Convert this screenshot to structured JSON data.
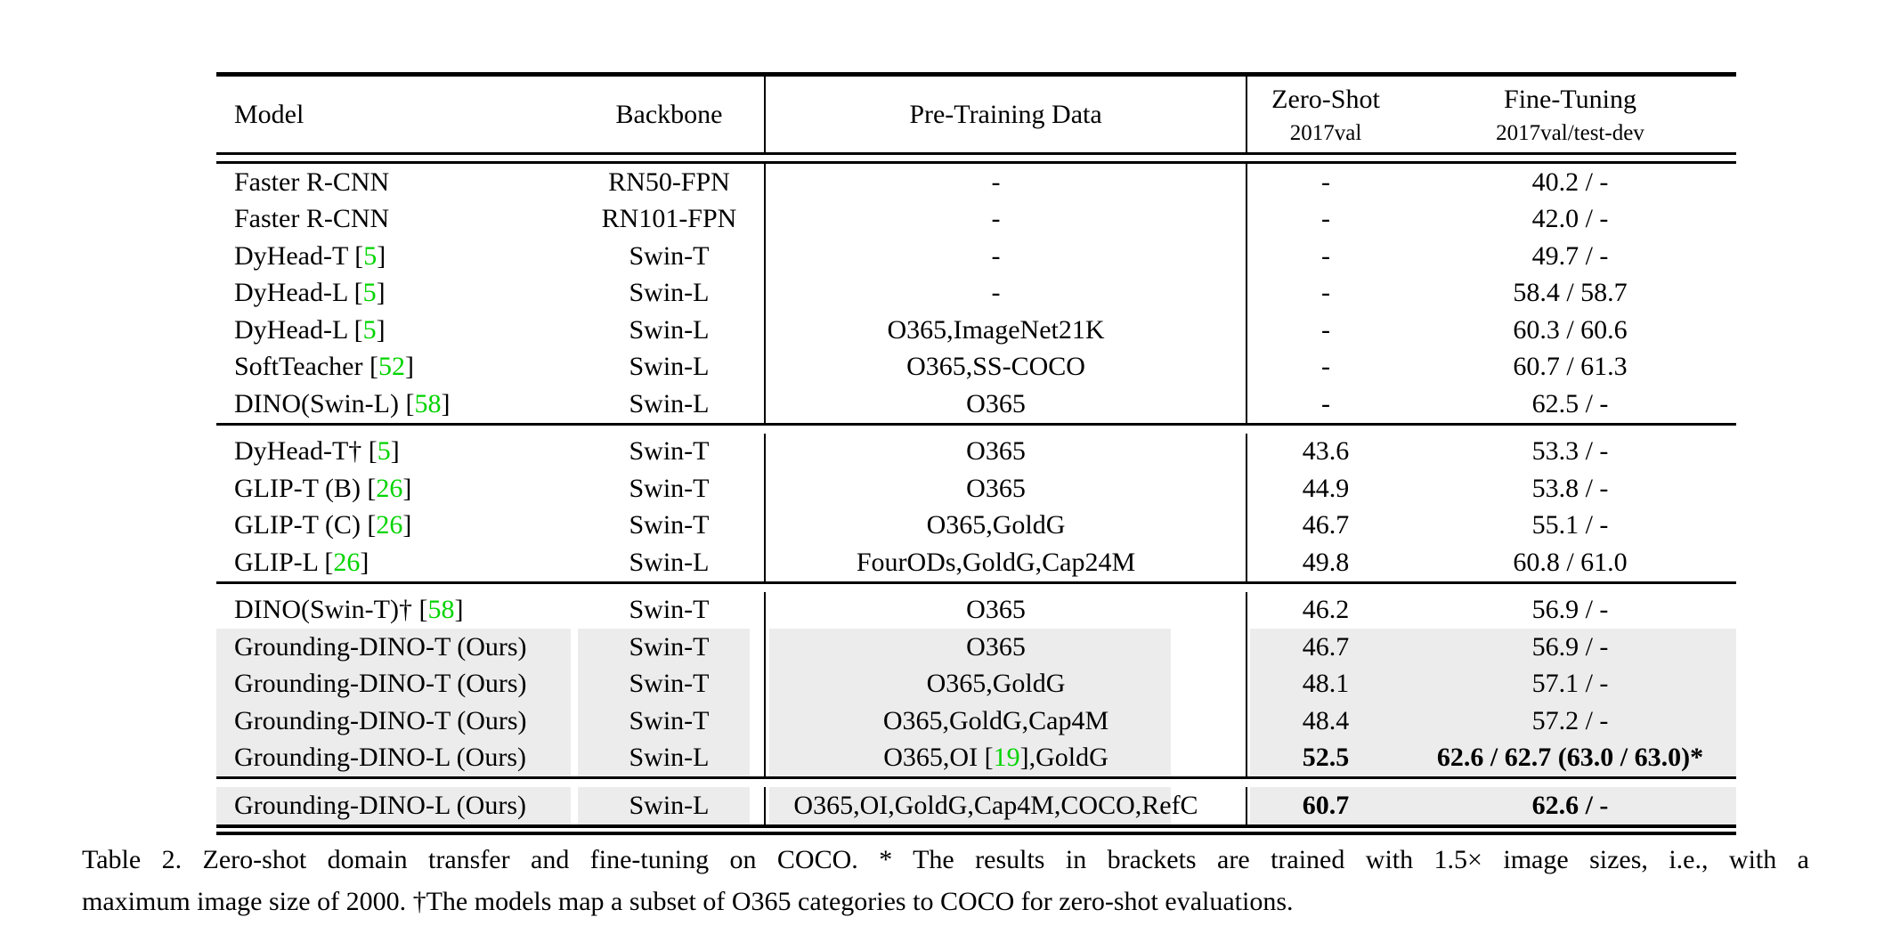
{
  "table": {
    "header": {
      "model": "Model",
      "backbone": "Backbone",
      "pretrain": "Pre-Training Data",
      "zero_shot_line1": "Zero-Shot",
      "zero_shot_line2": "2017val",
      "fine_tuning_line1": "Fine-Tuning",
      "fine_tuning_line2": "2017val/test-dev"
    },
    "blocks": [
      [
        {
          "model": "Faster R-CNN",
          "backbone": "RN50-FPN",
          "pretrain": "-",
          "zs": "-",
          "ft": "40.2 / -",
          "gray": false,
          "bold": false
        },
        {
          "model": "Faster R-CNN",
          "backbone": "RN101-FPN",
          "pretrain": "-",
          "zs": "-",
          "ft": "42.0 / -",
          "gray": false,
          "bold": false
        },
        {
          "model": "DyHead-T [5]",
          "backbone": "Swin-T",
          "pretrain": "-",
          "zs": "-",
          "ft": "49.7 / -",
          "gray": false,
          "bold": false
        },
        {
          "model": "DyHead-L [5]",
          "backbone": "Swin-L",
          "pretrain": "-",
          "zs": "-",
          "ft": "58.4 / 58.7",
          "gray": false,
          "bold": false
        },
        {
          "model": "DyHead-L [5]",
          "backbone": "Swin-L",
          "pretrain": "O365,ImageNet21K",
          "zs": "-",
          "ft": "60.3 / 60.6",
          "gray": false,
          "bold": false
        },
        {
          "model": "SoftTeacher [52]",
          "backbone": "Swin-L",
          "pretrain": "O365,SS-COCO",
          "zs": "-",
          "ft": "60.7 / 61.3",
          "gray": false,
          "bold": false
        },
        {
          "model": "DINO(Swin-L) [58]",
          "backbone": "Swin-L",
          "pretrain": "O365",
          "zs": "-",
          "ft": "62.5 / -",
          "gray": false,
          "bold": false
        }
      ],
      [
        {
          "model": "DyHead-T† [5]",
          "backbone": "Swin-T",
          "pretrain": "O365",
          "zs": "43.6",
          "ft": "53.3 / -",
          "gray": false,
          "bold": false
        },
        {
          "model": "GLIP-T (B) [26]",
          "backbone": "Swin-T",
          "pretrain": "O365",
          "zs": "44.9",
          "ft": "53.8 / -",
          "gray": false,
          "bold": false
        },
        {
          "model": "GLIP-T (C) [26]",
          "backbone": "Swin-T",
          "pretrain": "O365,GoldG",
          "zs": "46.7",
          "ft": "55.1 / -",
          "gray": false,
          "bold": false
        },
        {
          "model": "GLIP-L [26]",
          "backbone": "Swin-L",
          "pretrain": "FourODs,GoldG,Cap24M",
          "zs": "49.8",
          "ft": "60.8 / 61.0",
          "gray": false,
          "bold": false
        }
      ],
      [
        {
          "model": "DINO(Swin-T)† [58]",
          "backbone": "Swin-T",
          "pretrain": "O365",
          "zs": "46.2",
          "ft": "56.9 / -",
          "gray": false,
          "bold": false
        },
        {
          "model": "Grounding-DINO-T (Ours)",
          "backbone": "Swin-T",
          "pretrain": "O365",
          "zs": "46.7",
          "ft": "56.9 / -",
          "gray": true,
          "bold": false
        },
        {
          "model": "Grounding-DINO-T (Ours)",
          "backbone": "Swin-T",
          "pretrain": "O365,GoldG",
          "zs": "48.1",
          "ft": "57.1 / -",
          "gray": true,
          "bold": false
        },
        {
          "model": "Grounding-DINO-T (Ours)",
          "backbone": "Swin-T",
          "pretrain": "O365,GoldG,Cap4M",
          "zs": "48.4",
          "ft": "57.2 / -",
          "gray": true,
          "bold": false
        },
        {
          "model": "Grounding-DINO-L (Ours)",
          "backbone": "Swin-L",
          "pretrain": "O365,OI [19],GoldG",
          "zs": "52.5",
          "ft": "62.6 / 62.7 (63.0 / 63.0)*",
          "gray": true,
          "bold": true
        }
      ],
      [
        {
          "model": "Grounding-DINO-L (Ours)",
          "backbone": "Swin-L",
          "pretrain": "O365,OI,GoldG,Cap4M,COCO,RefC",
          "zs": "60.7",
          "ft": "62.6 / -",
          "gray": true,
          "bold": true
        }
      ]
    ]
  },
  "caption": {
    "line1": "Table 2.  Zero-shot domain transfer and fine-tuning on COCO. * The results in brackets are trained with 1.5× image sizes, i.e., with a",
    "line2": "maximum image size of 2000. †The models map a subset of O365 categories to COCO for zero-shot evaluations."
  },
  "colors": {
    "citation_green": "#00d400",
    "row_highlight": "#ececec"
  }
}
